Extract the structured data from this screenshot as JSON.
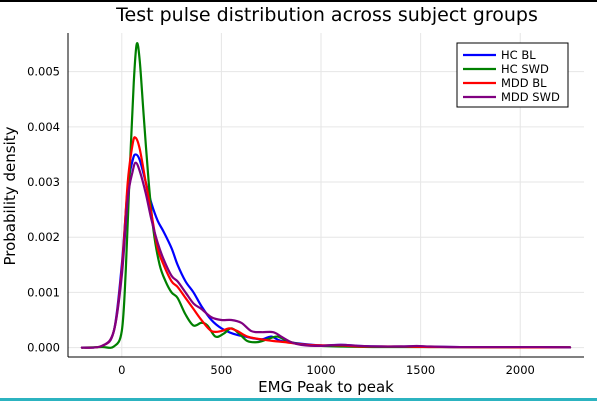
{
  "chart_data": {
    "type": "line",
    "title": "Test pulse distribution across subject groups",
    "xlabel": "EMG Peak to peak",
    "ylabel": "Probability density",
    "xlim": [
      -270,
      2320
    ],
    "ylim": [
      -0.00017,
      0.0057
    ],
    "xticks": [
      0,
      500,
      1000,
      1500,
      2000
    ],
    "yticks": [
      0.0,
      0.001,
      0.002,
      0.003,
      0.004,
      0.005
    ],
    "ytick_labels": [
      "0.000",
      "0.001",
      "0.002",
      "0.003",
      "0.004",
      "0.005"
    ],
    "grid": true,
    "legend_position": "top-right",
    "series": [
      {
        "name": "HC BL",
        "color": "#0000ff",
        "points": [
          [
            -200,
            0
          ],
          [
            -100,
            3e-05
          ],
          [
            -40,
            0.0003
          ],
          [
            0,
            0.0015
          ],
          [
            30,
            0.0029
          ],
          [
            55,
            0.0034
          ],
          [
            70,
            0.0035
          ],
          [
            90,
            0.0034
          ],
          [
            120,
            0.003
          ],
          [
            150,
            0.0026
          ],
          [
            180,
            0.0023
          ],
          [
            210,
            0.0021
          ],
          [
            250,
            0.0018
          ],
          [
            280,
            0.0015
          ],
          [
            320,
            0.0012
          ],
          [
            360,
            0.001
          ],
          [
            400,
            0.00075
          ],
          [
            450,
            0.0005
          ],
          [
            500,
            0.00035
          ],
          [
            560,
            0.00025
          ],
          [
            620,
            0.0002
          ],
          [
            700,
            0.00015
          ],
          [
            750,
            0.0002
          ],
          [
            800,
            0.00012
          ],
          [
            900,
            7e-05
          ],
          [
            1000,
            4e-05
          ],
          [
            1100,
            5e-05
          ],
          [
            1200,
            3e-05
          ],
          [
            1300,
            2e-05
          ],
          [
            1400,
            2e-05
          ],
          [
            1500,
            2e-05
          ],
          [
            1700,
            1e-05
          ],
          [
            2000,
            1e-05
          ],
          [
            2250,
            5e-06
          ]
        ]
      },
      {
        "name": "HC SWD",
        "color": "#008000",
        "points": [
          [
            -200,
            0
          ],
          [
            -100,
            1e-05
          ],
          [
            -40,
            2e-05
          ],
          [
            0,
            0.0003
          ],
          [
            20,
            0.0014
          ],
          [
            40,
            0.0032
          ],
          [
            60,
            0.0048
          ],
          [
            75,
            0.0055
          ],
          [
            90,
            0.0052
          ],
          [
            110,
            0.0042
          ],
          [
            135,
            0.003
          ],
          [
            160,
            0.0021
          ],
          [
            190,
            0.0015
          ],
          [
            220,
            0.0012
          ],
          [
            250,
            0.001
          ],
          [
            280,
            0.0009
          ],
          [
            320,
            0.0006
          ],
          [
            360,
            0.0004
          ],
          [
            400,
            0.00045
          ],
          [
            430,
            0.0004
          ],
          [
            470,
            0.0002
          ],
          [
            510,
            0.00025
          ],
          [
            550,
            0.00035
          ],
          [
            590,
            0.00025
          ],
          [
            630,
            0.00012
          ],
          [
            680,
            0.0001
          ],
          [
            730,
            0.00015
          ],
          [
            780,
            0.0002
          ],
          [
            830,
            0.00012
          ],
          [
            900,
            6e-05
          ],
          [
            1000,
            3e-05
          ],
          [
            1100,
            2e-05
          ],
          [
            1300,
            1e-05
          ],
          [
            1600,
            1e-05
          ],
          [
            2000,
            5e-06
          ],
          [
            2250,
            5e-06
          ]
        ]
      },
      {
        "name": "MDD BL",
        "color": "#ff0000",
        "points": [
          [
            -200,
            0
          ],
          [
            -100,
            3e-05
          ],
          [
            -40,
            0.0003
          ],
          [
            0,
            0.0014
          ],
          [
            30,
            0.003
          ],
          [
            55,
            0.0037
          ],
          [
            70,
            0.0038
          ],
          [
            90,
            0.0036
          ],
          [
            120,
            0.003
          ],
          [
            150,
            0.0024
          ],
          [
            180,
            0.0018
          ],
          [
            210,
            0.0015
          ],
          [
            250,
            0.0012
          ],
          [
            280,
            0.0011
          ],
          [
            320,
            0.0009
          ],
          [
            360,
            0.0007
          ],
          [
            400,
            0.0005
          ],
          [
            450,
            0.0003
          ],
          [
            500,
            0.0003
          ],
          [
            540,
            0.00035
          ],
          [
            580,
            0.0003
          ],
          [
            630,
            0.0002
          ],
          [
            700,
            0.00015
          ],
          [
            760,
            0.00012
          ],
          [
            820,
            0.0001
          ],
          [
            900,
            6e-05
          ],
          [
            1000,
            4e-05
          ],
          [
            1100,
            4e-05
          ],
          [
            1200,
            2e-05
          ],
          [
            1400,
            2e-05
          ],
          [
            1600,
            1e-05
          ],
          [
            2000,
            5e-06
          ],
          [
            2250,
            5e-06
          ]
        ]
      },
      {
        "name": "MDD SWD",
        "color": "#800080",
        "points": [
          [
            -200,
            0
          ],
          [
            -100,
            3e-05
          ],
          [
            -40,
            0.0003
          ],
          [
            0,
            0.0013
          ],
          [
            30,
            0.0027
          ],
          [
            55,
            0.0032
          ],
          [
            70,
            0.00335
          ],
          [
            90,
            0.0032
          ],
          [
            120,
            0.0028
          ],
          [
            150,
            0.0023
          ],
          [
            180,
            0.0019
          ],
          [
            210,
            0.0016
          ],
          [
            250,
            0.0013
          ],
          [
            280,
            0.0012
          ],
          [
            320,
            0.001
          ],
          [
            360,
            0.0008
          ],
          [
            400,
            0.0007
          ],
          [
            450,
            0.00055
          ],
          [
            500,
            0.0005
          ],
          [
            550,
            0.0005
          ],
          [
            600,
            0.00045
          ],
          [
            650,
            0.0003
          ],
          [
            700,
            0.00028
          ],
          [
            760,
            0.00028
          ],
          [
            800,
            0.0002
          ],
          [
            850,
            0.0001
          ],
          [
            900,
            5e-05
          ],
          [
            1000,
            3e-05
          ],
          [
            1100,
            5e-05
          ],
          [
            1200,
            3e-05
          ],
          [
            1300,
            2e-05
          ],
          [
            1400,
            2e-05
          ],
          [
            1480,
            3e-05
          ],
          [
            1550,
            2e-05
          ],
          [
            1700,
            1e-05
          ],
          [
            1900,
            1e-05
          ],
          [
            2100,
            1e-05
          ],
          [
            2250,
            5e-06
          ]
        ]
      }
    ]
  }
}
